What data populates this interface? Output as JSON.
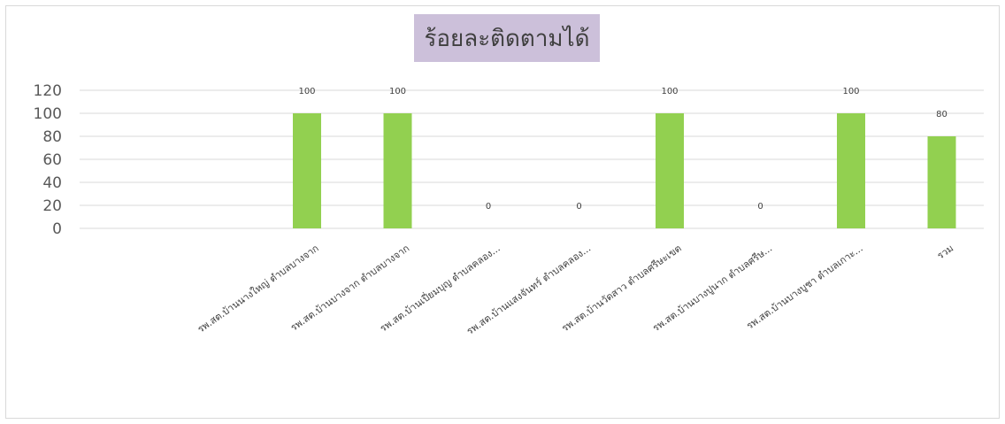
{
  "chart_data": {
    "type": "bar",
    "title": "ร้อยละติดตามได้",
    "xlabel": "",
    "ylabel": "",
    "ylim": [
      0,
      120
    ],
    "yticks": [
      0,
      20,
      40,
      60,
      80,
      100,
      120
    ],
    "grid": true,
    "legend": "none",
    "bar_color": "#92d050",
    "title_bg_color": "#ccc0da",
    "categories": [
      "รพ.สต.บ้านนางใหญ่ ตำบลบางจาก",
      "รพ.สต.บ้านบางจาก ตำบลบางจาก",
      "รพ.สต.บ้านเปี่ยมบุญ ตำบลคลอง...",
      "รพ.สต.บ้านแสงจันทร์ ตำบลคลอง...",
      "รพ.สต.บ้านวัดสาว ตำบลศรีษะเขต",
      "รพ.สต.บ้านบางปูนาก ตำบลศรีษ...",
      "รพ.สต.บ้านบางบูชา ตำบลเกาะ...",
      "รวม"
    ],
    "values": [
      100,
      100,
      0,
      0,
      100,
      0,
      100,
      80
    ],
    "data_labels": [
      "100",
      "100",
      "0",
      "0",
      "100",
      "0",
      "100",
      "80"
    ]
  }
}
